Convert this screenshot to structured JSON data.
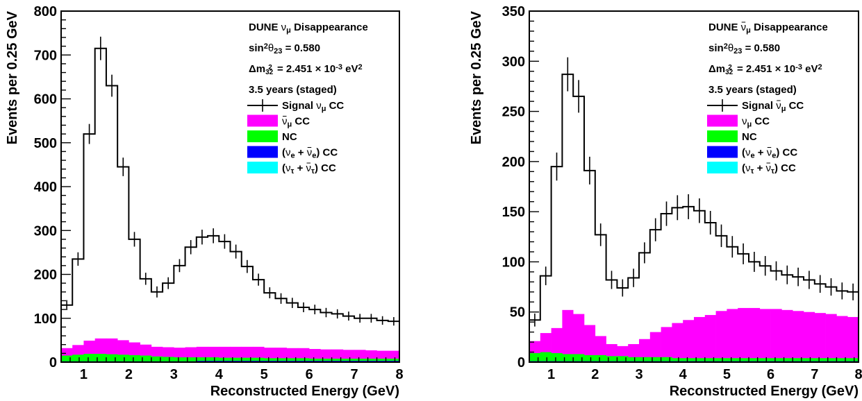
{
  "chart_data": [
    {
      "type": "bar",
      "histogram": "stacked-step",
      "xlabel": "Reconstructed Energy (GeV)",
      "ylabel": "Events per 0.25 GeV",
      "xlim": [
        0.5,
        8
      ],
      "ylim": [
        0,
        800
      ],
      "xticks": [
        1,
        2,
        3,
        4,
        5,
        6,
        7,
        8
      ],
      "yticks": [
        0,
        100,
        200,
        300,
        400,
        500,
        600,
        700,
        800
      ],
      "bin_width": 0.25,
      "text_lines": [
        {
          "type": "experiment",
          "prefix": "DUNE",
          "nu": "ν",
          "bar": false,
          "sub": "μ",
          "suffix": "Disappearance"
        },
        {
          "type": "sin",
          "label": "sin",
          "exp": "2",
          "theta": "θ",
          "sub": "23",
          "value": "= 0.580"
        },
        {
          "type": "dm",
          "delta": "Δm",
          "sub": "32",
          "exp": "2",
          "text": "= 2.451 × 10",
          "exp2": "-3",
          "unit": "eV",
          "unit_exp": "2"
        },
        {
          "type": "plain",
          "text": "3.5 years (staged)"
        }
      ],
      "legend": [
        {
          "kind": "marker",
          "series": "signal",
          "label": {
            "type": "nu",
            "prefix": "Signal ",
            "nu": "ν",
            "bar": false,
            "sub": "μ",
            "suffix": " CC"
          }
        },
        {
          "kind": "fill",
          "series": "wrongsign",
          "label": {
            "type": "nu",
            "prefix": "",
            "nu": "ν",
            "bar": true,
            "sub": "μ",
            "suffix": " CC"
          }
        },
        {
          "kind": "fill",
          "series": "nc",
          "label": {
            "type": "plain",
            "text": "NC"
          }
        },
        {
          "kind": "fill",
          "series": "nue",
          "label": {
            "type": "pair",
            "a_sub": "e",
            "b_sub": "e",
            "suffix": " CC"
          }
        },
        {
          "kind": "fill",
          "series": "nutau",
          "label": {
            "type": "pair",
            "a_sub": "τ",
            "b_sub": "τ",
            "suffix": " CC"
          }
        }
      ],
      "colors": {
        "signal": "#000000",
        "wrongsign": "#ff00ff",
        "nc": "#00ff00",
        "nue": "#0000ff",
        "nutau": "#00ffff"
      },
      "series": [
        {
          "key": "signal",
          "values": [
            130,
            235,
            520,
            715,
            630,
            445,
            280,
            190,
            160,
            180,
            220,
            262,
            285,
            288,
            275,
            252,
            218,
            188,
            158,
            145,
            135,
            125,
            120,
            113,
            110,
            105,
            100,
            100,
            95,
            93
          ]
        },
        {
          "key": "wrongsign",
          "values": [
            17,
            22,
            30,
            35,
            36,
            33,
            29,
            25,
            22,
            22,
            22,
            23,
            24,
            24,
            25,
            25,
            25,
            25,
            24,
            24,
            23,
            23,
            22,
            21,
            21,
            20,
            20,
            19,
            18,
            18
          ]
        },
        {
          "key": "nc",
          "values": [
            13,
            15,
            17,
            17,
            16,
            15,
            14,
            13,
            11,
            10,
            9,
            9,
            8,
            8,
            7,
            7,
            7,
            7,
            6,
            6,
            6,
            6,
            5,
            5,
            5,
            5,
            5,
            5,
            5,
            5
          ]
        },
        {
          "key": "nue",
          "values": [
            2,
            2,
            2,
            2,
            2,
            2,
            2,
            2,
            2,
            2,
            2,
            2,
            2,
            2,
            2,
            2,
            2,
            2,
            2,
            2,
            2,
            2,
            2,
            2,
            2,
            2,
            2,
            2,
            2,
            2
          ]
        },
        {
          "key": "nutau",
          "values": [
            0,
            0,
            0,
            0,
            0,
            0,
            0,
            0,
            0,
            0,
            0,
            0,
            1,
            1,
            1,
            1,
            1,
            1,
            1,
            1,
            1,
            1,
            1,
            1,
            1,
            1,
            1,
            1,
            1,
            1
          ]
        }
      ]
    },
    {
      "type": "bar",
      "histogram": "stacked-step",
      "xlabel": "Reconstructed Energy (GeV)",
      "ylabel": "Events per 0.25 GeV",
      "xlim": [
        0.5,
        8
      ],
      "ylim": [
        0,
        350
      ],
      "xticks": [
        1,
        2,
        3,
        4,
        5,
        6,
        7,
        8
      ],
      "yticks": [
        0,
        50,
        100,
        150,
        200,
        250,
        300,
        350
      ],
      "bin_width": 0.25,
      "text_lines": [
        {
          "type": "experiment",
          "prefix": "DUNE",
          "nu": "ν",
          "bar": true,
          "sub": "μ",
          "suffix": "Disappearance"
        },
        {
          "type": "sin",
          "label": "sin",
          "exp": "2",
          "theta": "θ",
          "sub": "23",
          "value": "= 0.580"
        },
        {
          "type": "dm",
          "delta": "Δm",
          "sub": "32",
          "exp": "2",
          "text": "= 2.451 × 10",
          "exp2": "-3",
          "unit": "eV",
          "unit_exp": "2"
        },
        {
          "type": "plain",
          "text": "3.5 years (staged)"
        }
      ],
      "legend": [
        {
          "kind": "marker",
          "series": "signal",
          "label": {
            "type": "nu",
            "prefix": "Signal ",
            "nu": "ν",
            "bar": true,
            "sub": "μ",
            "suffix": " CC"
          }
        },
        {
          "kind": "fill",
          "series": "wrongsign",
          "label": {
            "type": "nu",
            "prefix": "",
            "nu": "ν",
            "bar": false,
            "sub": "μ",
            "suffix": " CC"
          }
        },
        {
          "kind": "fill",
          "series": "nc",
          "label": {
            "type": "plain",
            "text": "NC"
          }
        },
        {
          "kind": "fill",
          "series": "nue",
          "label": {
            "type": "pair",
            "a_sub": "e",
            "b_sub": "e",
            "suffix": " CC"
          }
        },
        {
          "kind": "fill",
          "series": "nutau",
          "label": {
            "type": "pair",
            "a_sub": "τ",
            "b_sub": "τ",
            "suffix": " CC"
          }
        }
      ],
      "colors": {
        "signal": "#000000",
        "wrongsign": "#ff00ff",
        "nc": "#00ff00",
        "nue": "#0000ff",
        "nutau": "#00ffff"
      },
      "series": [
        {
          "key": "signal",
          "values": [
            42,
            86,
            195,
            287,
            265,
            191,
            127,
            82,
            74,
            84,
            109,
            132,
            148,
            154,
            155,
            151,
            139,
            126,
            115,
            108,
            100,
            96,
            91,
            87,
            85,
            82,
            78,
            75,
            71,
            70
          ]
        },
        {
          "key": "wrongsign",
          "values": [
            12,
            19,
            25,
            44,
            40,
            30,
            19,
            12,
            10,
            13,
            18,
            25,
            30,
            35,
            38,
            41,
            43,
            47,
            49,
            50,
            50,
            49,
            49,
            48,
            47,
            46,
            45,
            44,
            42,
            41
          ]
        },
        {
          "key": "nc",
          "values": [
            8,
            9,
            8,
            7,
            7,
            6,
            6,
            5,
            5,
            4,
            4,
            4,
            4,
            3,
            3,
            3,
            3,
            3,
            3,
            3,
            3,
            3,
            3,
            3,
            3,
            3,
            3,
            3,
            3,
            3
          ]
        },
        {
          "key": "nue",
          "values": [
            1,
            1,
            1,
            1,
            1,
            1,
            1,
            1,
            1,
            1,
            1,
            1,
            1,
            1,
            1,
            1,
            1,
            1,
            1,
            1,
            1,
            1,
            1,
            1,
            1,
            1,
            1,
            1,
            1,
            1
          ]
        },
        {
          "key": "nutau",
          "values": [
            0,
            0,
            0,
            0,
            0,
            0,
            0,
            0,
            0,
            0,
            0,
            0,
            0,
            0,
            0,
            0,
            0,
            0,
            0,
            0,
            0,
            0,
            0,
            0,
            0,
            0,
            0,
            0,
            0,
            0
          ]
        }
      ]
    }
  ]
}
